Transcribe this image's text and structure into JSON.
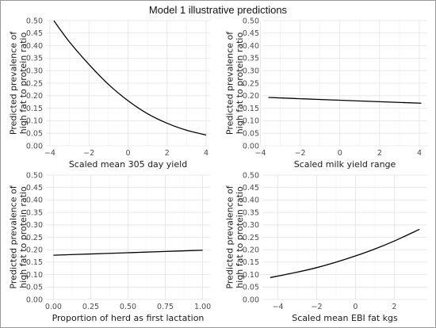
{
  "figure": {
    "title": "Model 1 illustrative predictions"
  },
  "chart_data": [
    {
      "type": "line",
      "xlabel": "Scaled mean 305 day yield",
      "ylabel": [
        "Predicted prevalence of",
        "high fat to protein ratio"
      ],
      "xlim": [
        -4.2,
        4.2
      ],
      "ylim": [
        0,
        0.5
      ],
      "x_ticks": [
        -4,
        -2,
        0,
        2,
        4
      ],
      "x_tick_labels": [
        "−4",
        "−2",
        "0",
        "2",
        "4"
      ],
      "y_ticks": [
        0,
        0.05,
        0.1,
        0.15,
        0.2,
        0.25,
        0.3,
        0.35,
        0.4,
        0.45,
        0.5
      ],
      "y_tick_labels": [
        "0.00",
        "0.05",
        "0.10",
        "0.15",
        "0.20",
        "0.25",
        "0.30",
        "0.35",
        "0.40",
        "0.45",
        "0.50"
      ],
      "grid": true,
      "x": [
        -3.8,
        -3,
        -2,
        -1,
        0,
        1,
        2,
        3,
        4
      ],
      "y": [
        0.5,
        0.415,
        0.325,
        0.245,
        0.18,
        0.128,
        0.09,
        0.062,
        0.043
      ]
    },
    {
      "type": "line",
      "xlabel": "Scaled milk yield range",
      "ylabel": [
        "Predicted prevalence of",
        "high fat to protein ratio"
      ],
      "xlim": [
        -3.9,
        4.4
      ],
      "ylim": [
        0,
        0.5
      ],
      "x_ticks": [
        -4,
        -2,
        0,
        2,
        4
      ],
      "x_tick_labels": [
        "−4",
        "−2",
        "0",
        "2",
        "4"
      ],
      "y_ticks": [
        0,
        0.05,
        0.1,
        0.15,
        0.2,
        0.25,
        0.3,
        0.35,
        0.4,
        0.45,
        0.5
      ],
      "y_tick_labels": [
        "0.00",
        "0.05",
        "0.10",
        "0.15",
        "0.20",
        "0.25",
        "0.30",
        "0.35",
        "0.40",
        "0.45",
        "0.50"
      ],
      "grid": true,
      "x": [
        -3.6,
        -2,
        0,
        2,
        4.1
      ],
      "y": [
        0.193,
        0.188,
        0.182,
        0.176,
        0.17
      ]
    },
    {
      "type": "line",
      "xlabel": "Proportion of herd as first lactation",
      "ylabel": [
        "Predicted prevalence of",
        "high fat to protein ratio"
      ],
      "xlim": [
        -0.05,
        1.05
      ],
      "ylim": [
        0,
        0.5
      ],
      "x_ticks": [
        0,
        0.25,
        0.5,
        0.75,
        1
      ],
      "x_tick_labels": [
        "0.00",
        "0.25",
        "0.50",
        "0.75",
        "1.00"
      ],
      "y_ticks": [
        0,
        0.05,
        0.1,
        0.15,
        0.2,
        0.25,
        0.3,
        0.35,
        0.4,
        0.45,
        0.5
      ],
      "y_tick_labels": [
        "0.00",
        "0.05",
        "0.10",
        "0.15",
        "0.20",
        "0.25",
        "0.30",
        "0.35",
        "0.40",
        "0.45",
        "0.50"
      ],
      "grid": true,
      "x": [
        0,
        0.25,
        0.5,
        0.75,
        1
      ],
      "y": [
        0.178,
        0.183,
        0.188,
        0.193,
        0.198
      ]
    },
    {
      "type": "line",
      "xlabel": "Scaled mean EBI fat kgs",
      "ylabel": [
        "Predicted prevalence of",
        "high fat to protein ratio"
      ],
      "xlim": [
        -4.8,
        3.7
      ],
      "ylim": [
        0,
        0.5
      ],
      "x_ticks": [
        -4,
        -2,
        0,
        2
      ],
      "x_tick_labels": [
        "−4",
        "−2",
        "0",
        "2"
      ],
      "y_ticks": [
        0,
        0.05,
        0.1,
        0.15,
        0.2,
        0.25,
        0.3,
        0.35,
        0.4,
        0.45,
        0.5
      ],
      "y_tick_labels": [
        "0.00",
        "0.05",
        "0.10",
        "0.15",
        "0.20",
        "0.25",
        "0.30",
        "0.35",
        "0.40",
        "0.45",
        "0.50"
      ],
      "grid": true,
      "x": [
        -4.4,
        -3,
        -2,
        -1,
        0,
        1,
        2,
        3.3
      ],
      "y": [
        0.088,
        0.11,
        0.128,
        0.15,
        0.175,
        0.203,
        0.235,
        0.282
      ]
    }
  ]
}
